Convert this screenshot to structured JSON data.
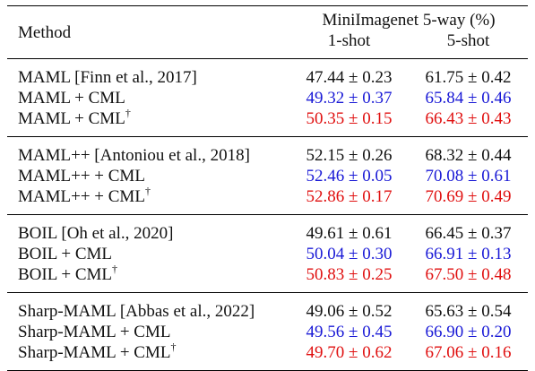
{
  "colors": {
    "baseline": "#111111",
    "cml": "#1a1ad6",
    "cml_dagger": "#e01010"
  },
  "header": {
    "method": "Method",
    "group": "MiniImagenet 5-way (%)",
    "shot1": "1-shot",
    "shot5": "5-shot"
  },
  "groups": [
    {
      "rows": [
        {
          "method": "MAML [Finn et al., 2017]",
          "dagger": "",
          "one_shot": "47.44 ± 0.23",
          "five_shot": "61.75 ± 0.42",
          "style": "baseline"
        },
        {
          "method": "MAML + CML",
          "dagger": "",
          "one_shot": "49.32 ± 0.37",
          "five_shot": "65.84 ± 0.46",
          "style": "cml"
        },
        {
          "method": "MAML + CML",
          "dagger": "†",
          "one_shot": "50.35 ± 0.15",
          "five_shot": "66.43 ± 0.43",
          "style": "cml_dagger"
        }
      ]
    },
    {
      "rows": [
        {
          "method": "MAML++ [Antoniou et al., 2018]",
          "dagger": "",
          "one_shot": "52.15 ± 0.26",
          "five_shot": "68.32 ± 0.44",
          "style": "baseline"
        },
        {
          "method": "MAML++ + CML",
          "dagger": "",
          "one_shot": "52.46 ± 0.05",
          "five_shot": "70.08 ± 0.61",
          "style": "cml"
        },
        {
          "method": "MAML++ + CML",
          "dagger": "†",
          "one_shot": "52.86 ± 0.17",
          "five_shot": "70.69 ± 0.49",
          "style": "cml_dagger"
        }
      ]
    },
    {
      "rows": [
        {
          "method": "BOIL [Oh et al., 2020]",
          "dagger": "",
          "one_shot": "49.61 ± 0.61",
          "five_shot": "66.45 ± 0.37",
          "style": "baseline"
        },
        {
          "method": "BOIL + CML",
          "dagger": "",
          "one_shot": "50.04 ± 0.30",
          "five_shot": "66.91 ± 0.13",
          "style": "cml"
        },
        {
          "method": "BOIL + CML",
          "dagger": "†",
          "one_shot": "50.83 ± 0.25",
          "five_shot": "67.50 ± 0.48",
          "style": "cml_dagger"
        }
      ]
    },
    {
      "rows": [
        {
          "method": "Sharp-MAML [Abbas et al., 2022]",
          "dagger": "",
          "one_shot": "49.06 ± 0.52",
          "five_shot": "65.63 ± 0.54",
          "style": "baseline"
        },
        {
          "method": "Sharp-MAML + CML",
          "dagger": "",
          "one_shot": "49.56 ± 0.45",
          "five_shot": "66.90 ± 0.20",
          "style": "cml"
        },
        {
          "method": "Sharp-MAML + CML",
          "dagger": "†",
          "one_shot": "49.70 ± 0.62",
          "five_shot": "67.06 ± 0.16",
          "style": "cml_dagger"
        }
      ]
    }
  ]
}
